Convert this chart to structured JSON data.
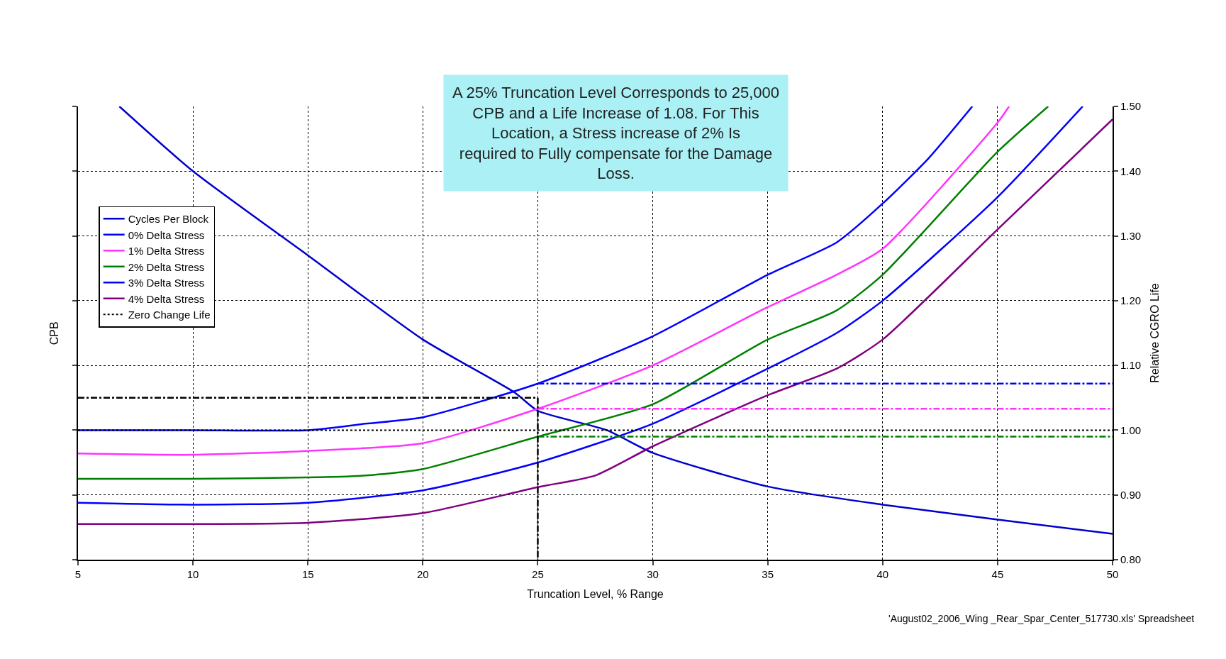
{
  "chart_data": {
    "type": "line",
    "xlabel": "Truncation Level, % Range",
    "ylabel": "CPB",
    "y2label": "Relative CGRO Life",
    "xlim": [
      5,
      50
    ],
    "xticks": [
      5,
      10,
      15,
      20,
      25,
      30,
      35,
      40,
      45,
      50
    ],
    "ylim": [
      0.8,
      1.5
    ],
    "yticks": [
      {
        "value": 0.8,
        "label": "0.80"
      },
      {
        "value": 0.9,
        "label": "0.90"
      },
      {
        "value": 1.0,
        "label": "1.00"
      },
      {
        "value": 1.1,
        "label": "1.10"
      },
      {
        "value": 1.2,
        "label": "1.20"
      },
      {
        "value": 1.3,
        "label": "1.30"
      },
      {
        "value": 1.4,
        "label": "1.40"
      },
      {
        "value": 1.5,
        "label": "1.50"
      }
    ],
    "grid": true,
    "legend": "top left",
    "line_style": "solid",
    "series": [
      {
        "name": "Cycles Per Block",
        "color": "#0000cc",
        "x": [
          6.8,
          10,
          15,
          20,
          24,
          25,
          28,
          30,
          35,
          40,
          45,
          50
        ],
        "values": [
          1.5,
          1.4,
          1.27,
          1.14,
          1.058,
          1.03,
          1.0,
          0.965,
          0.913,
          0.885,
          0.862,
          0.84
        ]
      },
      {
        "name": "0% Delta Stress",
        "color": "#0000ff",
        "x": [
          5,
          10,
          15,
          17.5,
          20,
          25,
          30,
          35,
          38,
          40,
          42,
          43.9
        ],
        "values": [
          1.0,
          1.0,
          1.0,
          1.01,
          1.02,
          1.072,
          1.145,
          1.24,
          1.29,
          1.35,
          1.42,
          1.5
        ]
      },
      {
        "name": "1% Delta Stress",
        "color": "#ff33ff",
        "x": [
          5,
          10,
          15,
          20,
          25,
          30,
          35,
          38,
          40,
          45,
          45.5
        ],
        "values": [
          0.964,
          0.962,
          0.968,
          0.98,
          1.033,
          1.1,
          1.19,
          1.24,
          1.28,
          1.475,
          1.5
        ]
      },
      {
        "name": "2% Delta Stress",
        "color": "#008000",
        "x": [
          5,
          10,
          15,
          17.5,
          20,
          25,
          30,
          35,
          38,
          40,
          45,
          47.2
        ],
        "values": [
          0.925,
          0.925,
          0.927,
          0.93,
          0.94,
          0.99,
          1.04,
          1.14,
          1.185,
          1.24,
          1.43,
          1.5
        ]
      },
      {
        "name": "3% Delta Stress",
        "color": "#0000ff",
        "x": [
          5,
          10,
          15,
          20,
          25,
          30,
          35,
          38,
          40,
          45,
          48.7
        ],
        "values": [
          0.888,
          0.885,
          0.888,
          0.907,
          0.95,
          1.01,
          1.095,
          1.15,
          1.2,
          1.36,
          1.5
        ]
      },
      {
        "name": "4% Delta Stress",
        "color": "#800080",
        "x": [
          5,
          10,
          15,
          20,
          25,
          27.5,
          30,
          35,
          38,
          40,
          45,
          50
        ],
        "values": [
          0.855,
          0.855,
          0.857,
          0.872,
          0.912,
          0.93,
          0.975,
          1.054,
          1.095,
          1.14,
          1.31,
          1.48
        ]
      },
      {
        "color": "#0000ff",
        "x": [
          25,
          50
        ],
        "values": [
          1.072,
          1.072
        ],
        "line_style": "dashed"
      },
      {
        "color": "#ff33ff",
        "x": [
          25,
          50
        ],
        "values": [
          1.033,
          1.033
        ],
        "line_style": "dashed"
      },
      {
        "color": "#008000",
        "x": [
          25,
          50
        ],
        "values": [
          0.99,
          0.99
        ],
        "line_style": "dashed"
      },
      {
        "color": "#000000",
        "x": [
          5,
          25
        ],
        "values": [
          1.05,
          1.05
        ],
        "line_style": "dashed"
      },
      {
        "color": "#000000",
        "x": [
          25,
          25
        ],
        "values": [
          1.05,
          0.8
        ],
        "line_style": "dashed"
      }
    ],
    "ref_lines": [
      {
        "axis": "y",
        "value": 1.0,
        "label": "Zero Change Life",
        "color": "#000000",
        "line_style": "dotted"
      }
    ],
    "annotations": [
      "A 25% Truncation Level Corresponds to 25,000 CPB and a Life Increase of 1.08. For This Location, a Stress increase of 2% Is required to Fully compensate for the Damage Loss.",
      "'August02_2006_Wing _Rear_Spar_Center_517730.xls' Spreadsheet"
    ]
  }
}
